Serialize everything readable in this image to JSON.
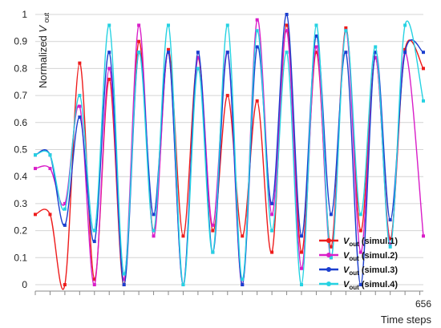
{
  "chart_data": {
    "type": "line",
    "xlabel": "Time steps",
    "ylabel": {
      "main": "Normalized ",
      "var": "V",
      "sub": "out"
    },
    "xlim": [
      0,
      656
    ],
    "ylim": [
      0,
      1
    ],
    "x_tick_labels": [
      {
        "x": 656,
        "label": "656"
      }
    ],
    "y_ticks": [
      0,
      0.1,
      0.2,
      0.3,
      0.4,
      0.5,
      0.6,
      0.7,
      0.8,
      0.9,
      1
    ],
    "y_tick_labels": [
      "0",
      "0.1",
      "0.2",
      "0.3",
      "0.4",
      "0.5",
      "0.6",
      "0.7",
      "0.8",
      "0.9",
      "1"
    ],
    "legend_position": "bottom-right",
    "series": [
      {
        "name": "(simul.1)",
        "var": "V",
        "sub": "out",
        "color": "#ee1c1c",
        "points": [
          [
            0,
            0.26
          ],
          [
            25,
            0.26
          ],
          [
            50,
            0.0
          ],
          [
            75,
            0.82
          ],
          [
            100,
            0.02
          ],
          [
            125,
            0.76
          ],
          [
            150,
            0.0
          ],
          [
            175,
            0.9
          ],
          [
            200,
            0.2
          ],
          [
            225,
            0.87
          ],
          [
            250,
            0.18
          ],
          [
            275,
            0.84
          ],
          [
            300,
            0.2
          ],
          [
            325,
            0.7
          ],
          [
            350,
            0.18
          ],
          [
            375,
            0.68
          ],
          [
            400,
            0.12
          ],
          [
            425,
            0.96
          ],
          [
            450,
            0.12
          ],
          [
            475,
            0.86
          ],
          [
            500,
            0.14
          ],
          [
            525,
            0.95
          ],
          [
            550,
            0.2
          ],
          [
            575,
            0.84
          ],
          [
            600,
            0.17
          ],
          [
            625,
            0.87
          ],
          [
            656,
            0.8
          ]
        ]
      },
      {
        "name": "(simul.2)",
        "var": "V",
        "sub": "out",
        "color": "#d91ec8",
        "points": [
          [
            0,
            0.43
          ],
          [
            25,
            0.43
          ],
          [
            50,
            0.3
          ],
          [
            75,
            0.66
          ],
          [
            100,
            0.0
          ],
          [
            125,
            0.8
          ],
          [
            150,
            0.02
          ],
          [
            175,
            0.96
          ],
          [
            200,
            0.18
          ],
          [
            225,
            0.86
          ],
          [
            250,
            0.0
          ],
          [
            275,
            0.84
          ],
          [
            300,
            0.22
          ],
          [
            325,
            0.86
          ],
          [
            350,
            0.0
          ],
          [
            375,
            0.98
          ],
          [
            400,
            0.26
          ],
          [
            425,
            0.94
          ],
          [
            450,
            0.06
          ],
          [
            475,
            0.88
          ],
          [
            500,
            0.1
          ],
          [
            525,
            0.94
          ],
          [
            550,
            0.12
          ],
          [
            575,
            0.84
          ],
          [
            600,
            0.15
          ],
          [
            625,
            0.86
          ],
          [
            656,
            0.18
          ]
        ]
      },
      {
        "name": "(simul.3)",
        "var": "V",
        "sub": "out",
        "color": "#1b3fcf",
        "points": [
          [
            0,
            0.48
          ],
          [
            25,
            0.48
          ],
          [
            50,
            0.22
          ],
          [
            75,
            0.62
          ],
          [
            100,
            0.16
          ],
          [
            125,
            0.86
          ],
          [
            150,
            0.0
          ],
          [
            175,
            0.86
          ],
          [
            200,
            0.26
          ],
          [
            225,
            0.86
          ],
          [
            250,
            0.0
          ],
          [
            275,
            0.86
          ],
          [
            300,
            0.12
          ],
          [
            325,
            0.86
          ],
          [
            350,
            0.0
          ],
          [
            375,
            0.88
          ],
          [
            400,
            0.3
          ],
          [
            425,
            1.0
          ],
          [
            450,
            0.18
          ],
          [
            475,
            0.92
          ],
          [
            500,
            0.26
          ],
          [
            525,
            0.86
          ],
          [
            550,
            0.0
          ],
          [
            575,
            0.86
          ],
          [
            600,
            0.24
          ],
          [
            625,
            0.86
          ],
          [
            656,
            0.86
          ]
        ]
      },
      {
        "name": "(simul.4)",
        "var": "V",
        "sub": "out",
        "color": "#25d2e2",
        "points": [
          [
            0,
            0.48
          ],
          [
            25,
            0.48
          ],
          [
            50,
            0.28
          ],
          [
            75,
            0.7
          ],
          [
            100,
            0.2
          ],
          [
            125,
            0.96
          ],
          [
            150,
            0.04
          ],
          [
            175,
            0.86
          ],
          [
            200,
            0.2
          ],
          [
            225,
            0.96
          ],
          [
            250,
            0.0
          ],
          [
            275,
            0.8
          ],
          [
            300,
            0.12
          ],
          [
            325,
            0.96
          ],
          [
            350,
            0.02
          ],
          [
            375,
            0.94
          ],
          [
            400,
            0.2
          ],
          [
            425,
            0.86
          ],
          [
            450,
            0.0
          ],
          [
            475,
            0.96
          ],
          [
            500,
            0.1
          ],
          [
            525,
            0.94
          ],
          [
            550,
            0.26
          ],
          [
            575,
            0.88
          ],
          [
            600,
            0.14
          ],
          [
            625,
            0.96
          ],
          [
            656,
            0.68
          ]
        ]
      }
    ]
  }
}
